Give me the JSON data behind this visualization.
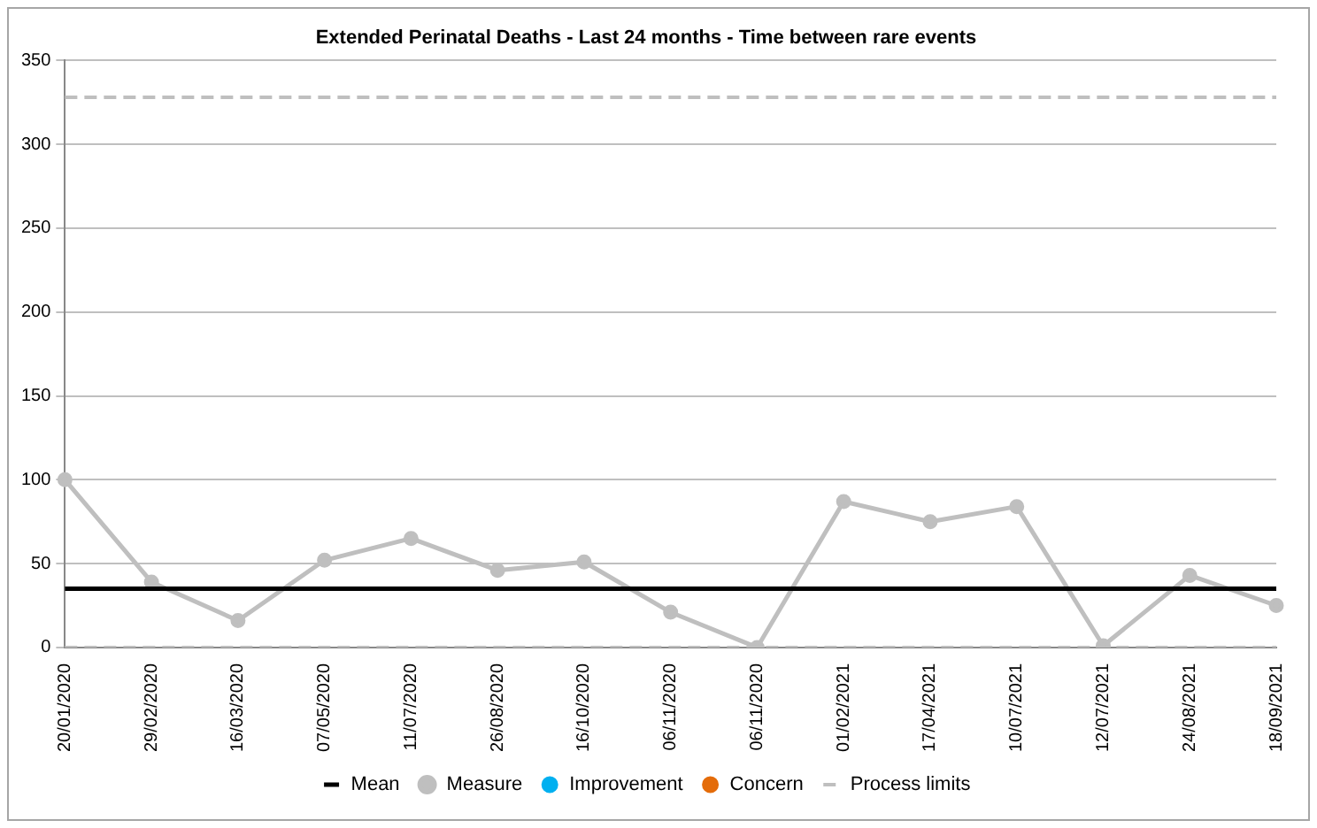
{
  "chart_data": {
    "type": "line",
    "title": "Extended Perinatal Deaths - Last 24 months - Time between rare events",
    "categories": [
      "20/01/2020",
      "29/02/2020",
      "16/03/2020",
      "07/05/2020",
      "11/07/2020",
      "26/08/2020",
      "16/10/2020",
      "06/11/2020",
      "06/11/2020",
      "01/02/2021",
      "17/04/2021",
      "10/07/2021",
      "12/07/2021",
      "24/08/2021",
      "18/09/2021"
    ],
    "series": [
      {
        "name": "Mean",
        "color": "#000000",
        "marker": "none",
        "line_style": "solid",
        "values": [
          35,
          35,
          35,
          35,
          35,
          35,
          35,
          35,
          35,
          35,
          35,
          35,
          35,
          35,
          35
        ]
      },
      {
        "name": "Measure",
        "color": "#bfbfbf",
        "marker": "circle",
        "line_style": "solid",
        "values": [
          100,
          39,
          16,
          52,
          65,
          46,
          51,
          21,
          0,
          87,
          75,
          84,
          1,
          43,
          25
        ]
      },
      {
        "name": "Improvement",
        "color": "#00b0f0",
        "type": "scatter",
        "marker": "circle",
        "values": [
          null,
          null,
          null,
          null,
          null,
          null,
          null,
          null,
          null,
          null,
          null,
          null,
          null,
          null,
          null
        ]
      },
      {
        "name": "Concern",
        "color": "#e46c0a",
        "type": "scatter",
        "marker": "circle",
        "values": [
          null,
          null,
          null,
          null,
          null,
          null,
          null,
          null,
          null,
          null,
          null,
          null,
          null,
          null,
          null
        ]
      },
      {
        "name": "Process limits",
        "color": "#bfbfbf",
        "marker": "none",
        "line_style": "dashed",
        "values": [
          328,
          328,
          328,
          328,
          328,
          328,
          328,
          328,
          328,
          328,
          328,
          328,
          328,
          328,
          328
        ]
      },
      {
        "color": "#bfbfbf",
        "marker": "none",
        "line_style": "dashed",
        "values": [
          0,
          0,
          0,
          0,
          0,
          0,
          0,
          0,
          0,
          0,
          0,
          0,
          0,
          0,
          0
        ]
      }
    ],
    "ylim": [
      0,
      350
    ],
    "yticks": [
      0,
      50,
      100,
      150,
      200,
      250,
      300,
      350
    ],
    "grid": "y",
    "legend": "bottom"
  }
}
